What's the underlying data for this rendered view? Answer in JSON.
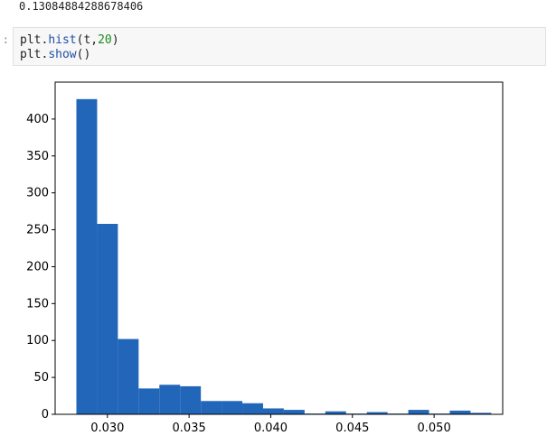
{
  "output": {
    "value": "0.13084884288678406"
  },
  "cell": {
    "prompt": ":",
    "line1": {
      "obj": "plt.",
      "fn": "hist",
      "open": "(t,",
      "num": "20",
      "close": ")"
    },
    "line2": {
      "obj": "plt.",
      "fn": "show",
      "rest": "()"
    }
  },
  "colors": {
    "bar": "#2166b8",
    "axis": "#000000"
  },
  "chart_data": {
    "type": "bar",
    "title": "",
    "xlabel": "",
    "ylabel": "",
    "xlim": [
      0.0268,
      0.0542
    ],
    "ylim": [
      0,
      450
    ],
    "bin_edges": [
      0.0281,
      0.02937,
      0.03064,
      0.03191,
      0.03318,
      0.03445,
      0.03572,
      0.03699,
      0.03826,
      0.03953,
      0.0408,
      0.04207,
      0.04334,
      0.04461,
      0.04588,
      0.04715,
      0.04842,
      0.04969,
      0.05096,
      0.05223,
      0.0535
    ],
    "values": [
      427,
      258,
      102,
      35,
      40,
      38,
      18,
      18,
      15,
      8,
      6,
      1,
      4,
      1,
      3,
      1,
      6,
      1,
      5,
      2
    ],
    "x_ticks": [
      0.03,
      0.035,
      0.04,
      0.045,
      0.05
    ],
    "x_tick_labels": [
      "0.030",
      "0.035",
      "0.040",
      "0.045",
      "0.050"
    ],
    "y_ticks": [
      0,
      50,
      100,
      150,
      200,
      250,
      300,
      350,
      400
    ],
    "y_tick_labels": [
      "0",
      "50",
      "100",
      "150",
      "200",
      "250",
      "300",
      "350",
      "400"
    ],
    "grid": false
  }
}
